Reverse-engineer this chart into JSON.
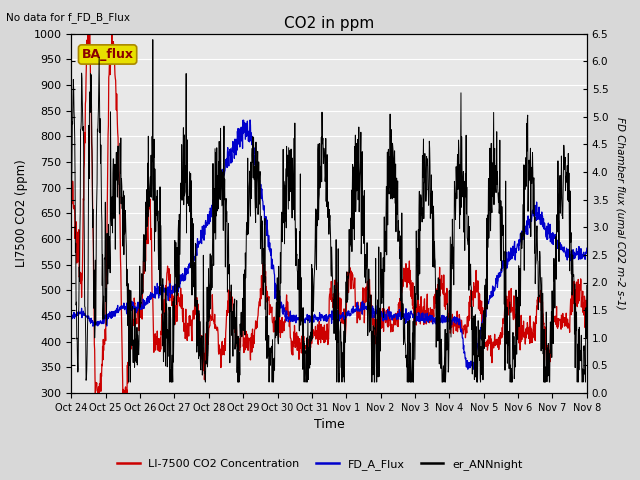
{
  "title": "CO2 in ppm",
  "top_left_text": "No data for f_FD_B_Flux",
  "legend_box_text": "BA_flux",
  "ylabel_left": "LI7500 CO2 (ppm)",
  "ylabel_right": "FD Chamber flux (umal CO2 m-2 s-1)",
  "xlabel": "Time",
  "ylim_left": [
    300,
    1000
  ],
  "ylim_right": [
    0.0,
    6.5
  ],
  "yticks_left": [
    300,
    350,
    400,
    450,
    500,
    550,
    600,
    650,
    700,
    750,
    800,
    850,
    900,
    950,
    1000
  ],
  "yticks_right": [
    0.0,
    0.5,
    1.0,
    1.5,
    2.0,
    2.5,
    3.0,
    3.5,
    4.0,
    4.5,
    5.0,
    5.5,
    6.0,
    6.5
  ],
  "bg_color": "#d8d8d8",
  "plot_bg_color": "#e8e8e8",
  "line_red": "#cc0000",
  "line_blue": "#0000cc",
  "line_black": "#000000",
  "legend_labels": [
    "LI-7500 CO2 Concentration",
    "FD_A_Flux",
    "er_ANNnight"
  ],
  "legend_colors": [
    "#cc0000",
    "#0000cc",
    "#000000"
  ],
  "n_points": 1500,
  "x_tick_labels": [
    "Oct 24",
    "Oct 25",
    "Oct 26",
    "Oct 27",
    "Oct 28",
    "Oct 29",
    "Oct 30",
    "Oct 31",
    "Nov 1",
    "Nov 2",
    "Nov 3",
    "Nov 4",
    "Nov 5",
    "Nov 6",
    "Nov 7",
    "Nov 8"
  ]
}
